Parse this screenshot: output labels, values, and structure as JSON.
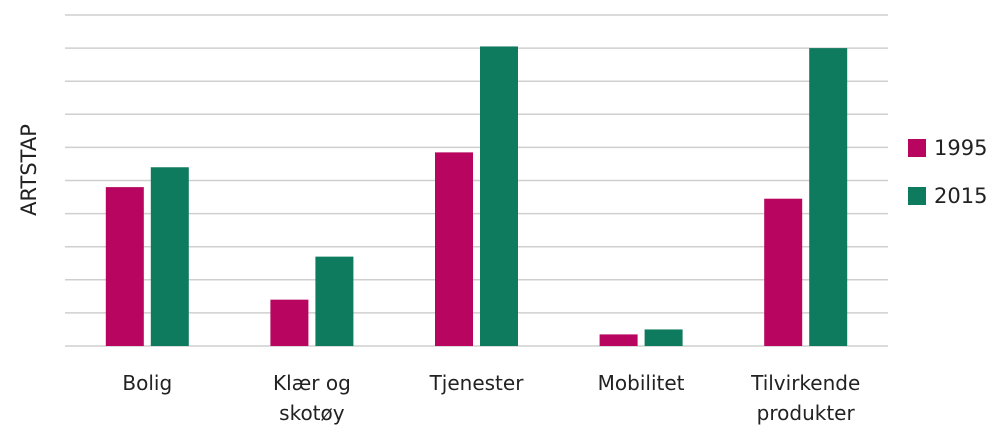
{
  "chart_data": {
    "type": "bar",
    "y_label": "ARTSTAP",
    "categories": [
      "Bolig",
      "Klær og skotøy",
      "Tjenester",
      "Mobilitet",
      "Tilvirkende produkter"
    ],
    "series": [
      {
        "name": "1995",
        "color": "#b8055f",
        "values": [
          4.8,
          1.4,
          5.85,
          0.35,
          4.45
        ]
      },
      {
        "name": "2015",
        "color": "#0e7a5e",
        "values": [
          5.4,
          2.7,
          9.05,
          0.5,
          9.0
        ]
      }
    ],
    "ylim": [
      0,
      10
    ],
    "yticks": [
      0,
      1,
      2,
      3,
      4,
      5,
      6,
      7,
      8,
      9,
      10
    ],
    "grid": true,
    "legend": "right"
  }
}
